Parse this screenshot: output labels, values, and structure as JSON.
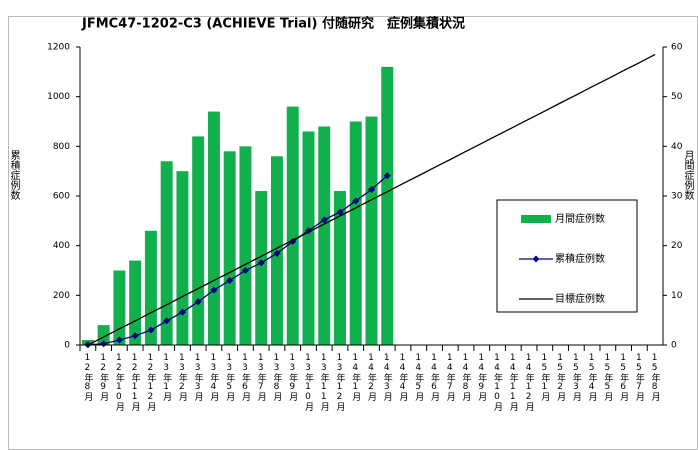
{
  "chart_data": {
    "type": "bar",
    "title": "JFMC47-1202-C3 (ACHIEVE Trial) 付随研究　症例集積状況",
    "ylabel": "累積症例数",
    "y2label": "月間症例数",
    "categories": [
      "12年8月",
      "12年9月",
      "12年10月",
      "12年11月",
      "12年12月",
      "13年1月",
      "13年2月",
      "13年3月",
      "13年4月",
      "13年5月",
      "13年6月",
      "13年7月",
      "13年8月",
      "13年9月",
      "13年10月",
      "13年11月",
      "13年12月",
      "14年1月",
      "14年2月",
      "14年3月",
      "14年4月",
      "14年5月",
      "14年6月",
      "14年7月",
      "14年8月",
      "14年9月",
      "14年10月",
      "14年11月",
      "14年12月",
      "15年1月",
      "15年2月",
      "15年3月",
      "15年4月",
      "15年5月",
      "15年6月",
      "15年7月",
      "15年8月"
    ],
    "series": [
      {
        "name": "月間症例数",
        "type": "bar",
        "axis": "y2",
        "color": "#12b04c",
        "values": [
          1,
          4,
          15,
          17,
          23,
          37,
          35,
          42,
          47,
          39,
          40,
          31,
          38,
          48,
          43,
          44,
          31,
          45,
          46,
          56,
          null,
          null,
          null,
          null,
          null,
          null,
          null,
          null,
          null,
          null,
          null,
          null,
          null,
          null,
          null,
          null,
          null
        ]
      },
      {
        "name": "累積症例数",
        "type": "line",
        "marker": "diamond",
        "color": "#000080",
        "values": [
          1,
          5,
          20,
          37,
          60,
          97,
          132,
          174,
          221,
          260,
          300,
          331,
          369,
          417,
          460,
          504,
          535,
          580,
          626,
          682,
          null,
          null,
          null,
          null,
          null,
          null,
          null,
          null,
          null,
          null,
          null,
          null,
          null,
          null,
          null,
          null,
          null
        ]
      },
      {
        "name": "目標症例数",
        "type": "line",
        "color": "#000000",
        "values": [
          0,
          32,
          65,
          97,
          130,
          162,
          195,
          227,
          260,
          292,
          325,
          357,
          390,
          422,
          455,
          487,
          520,
          552,
          585,
          617,
          650,
          682,
          715,
          747,
          780,
          812,
          845,
          877,
          910,
          942,
          975,
          1007,
          1040,
          1072,
          1105,
          1137,
          1170
        ]
      }
    ],
    "ylim": [
      0,
      1200
    ],
    "yticks": [
      0,
      200,
      400,
      600,
      800,
      1000,
      1200
    ],
    "y2lim": [
      0,
      60
    ],
    "y2ticks": [
      0,
      10,
      20,
      30,
      40,
      50,
      60
    ],
    "legend": "right"
  }
}
